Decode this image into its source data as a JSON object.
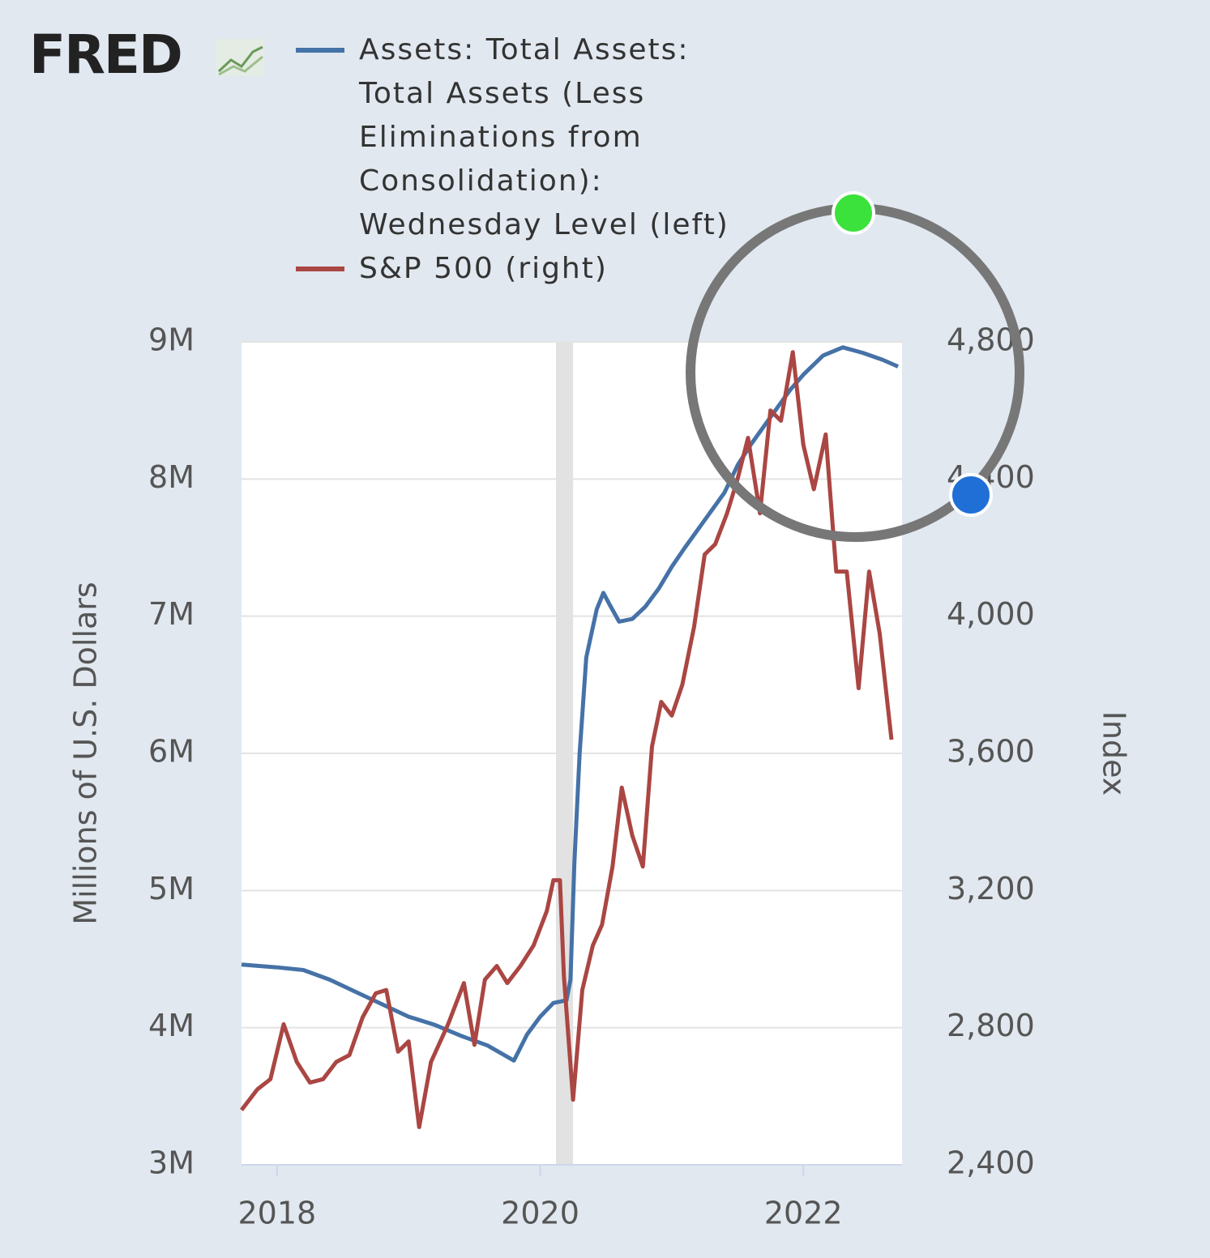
{
  "chart_data": {
    "type": "line",
    "logo": "FRED",
    "ylabel": "Millions of U.S. Dollars",
    "y2label": "Index",
    "xlim": [
      2017.73,
      2022.75
    ],
    "xticks": [
      2018,
      2020,
      2022
    ],
    "ylim": [
      3000000,
      9000000
    ],
    "yticks": [
      {
        "value": 3000000,
        "label": "3M"
      },
      {
        "value": 4000000,
        "label": "4M"
      },
      {
        "value": 5000000,
        "label": "5M"
      },
      {
        "value": 6000000,
        "label": "6M"
      },
      {
        "value": 7000000,
        "label": "7M"
      },
      {
        "value": 8000000,
        "label": "8M"
      },
      {
        "value": 9000000,
        "label": "9M"
      }
    ],
    "y2lim": [
      2400,
      4800
    ],
    "y2ticks": [
      {
        "value": 2400,
        "label": "2,400"
      },
      {
        "value": 2800,
        "label": "2,800"
      },
      {
        "value": 3200,
        "label": "3,200"
      },
      {
        "value": 3600,
        "label": "3,600"
      },
      {
        "value": 4000,
        "label": "4,000"
      },
      {
        "value": 4400,
        "label": "4,400"
      },
      {
        "value": 4800,
        "label": "4,800"
      }
    ],
    "grid": true,
    "recession": [
      2020.12,
      2020.25
    ],
    "series": [
      {
        "name": "Assets: Total Assets: Total Assets (Less Eliminations from Consolidation): Wednesday Level (left)",
        "color": "#4572a7",
        "axis": "y",
        "x": [
          2017.73,
          2018.0,
          2018.2,
          2018.4,
          2018.6,
          2018.8,
          2019.0,
          2019.2,
          2019.4,
          2019.6,
          2019.8,
          2019.9,
          2020.0,
          2020.1,
          2020.2,
          2020.23,
          2020.26,
          2020.3,
          2020.35,
          2020.43,
          2020.48,
          2020.53,
          2020.6,
          2020.7,
          2020.8,
          2020.9,
          2021.0,
          2021.1,
          2021.25,
          2021.4,
          2021.5,
          2021.6,
          2021.75,
          2021.9,
          2022.0,
          2022.15,
          2022.3,
          2022.45,
          2022.6,
          2022.72
        ],
        "values": [
          4460000,
          4440000,
          4420000,
          4350000,
          4260000,
          4170000,
          4080000,
          4020000,
          3940000,
          3870000,
          3760000,
          3950000,
          4080000,
          4180000,
          4200000,
          4350000,
          5200000,
          6000000,
          6700000,
          7050000,
          7170000,
          7080000,
          6960000,
          6980000,
          7070000,
          7200000,
          7360000,
          7500000,
          7700000,
          7900000,
          8100000,
          8250000,
          8450000,
          8650000,
          8760000,
          8900000,
          8960000,
          8920000,
          8870000,
          8820000
        ]
      },
      {
        "name": "S&P 500 (right)",
        "color": "#aa4643",
        "axis": "y2",
        "x": [
          2017.73,
          2017.85,
          2017.95,
          2018.05,
          2018.15,
          2018.25,
          2018.35,
          2018.45,
          2018.55,
          2018.65,
          2018.75,
          2018.83,
          2018.92,
          2019.0,
          2019.08,
          2019.17,
          2019.3,
          2019.42,
          2019.5,
          2019.58,
          2019.67,
          2019.75,
          2019.85,
          2019.95,
          2020.05,
          2020.1,
          2020.15,
          2020.18,
          2020.25,
          2020.32,
          2020.4,
          2020.47,
          2020.55,
          2020.62,
          2020.7,
          2020.78,
          2020.85,
          2020.92,
          2021.0,
          2021.08,
          2021.17,
          2021.25,
          2021.33,
          2021.42,
          2021.5,
          2021.58,
          2021.67,
          2021.75,
          2021.83,
          2021.92,
          2022.0,
          2022.08,
          2022.17,
          2022.25,
          2022.33,
          2022.42,
          2022.5,
          2022.58,
          2022.67
        ],
        "values": [
          2560,
          2620,
          2650,
          2810,
          2700,
          2640,
          2650,
          2700,
          2720,
          2830,
          2900,
          2910,
          2730,
          2760,
          2510,
          2700,
          2810,
          2930,
          2750,
          2940,
          2980,
          2930,
          2980,
          3040,
          3140,
          3230,
          3230,
          2950,
          2590,
          2910,
          3040,
          3100,
          3270,
          3500,
          3360,
          3270,
          3620,
          3750,
          3710,
          3800,
          3970,
          4180,
          4210,
          4300,
          4400,
          4520,
          4300,
          4600,
          4570,
          4770,
          4500,
          4370,
          4530,
          4130,
          4130,
          3790,
          4130,
          3950,
          3640
        ]
      }
    ]
  }
}
